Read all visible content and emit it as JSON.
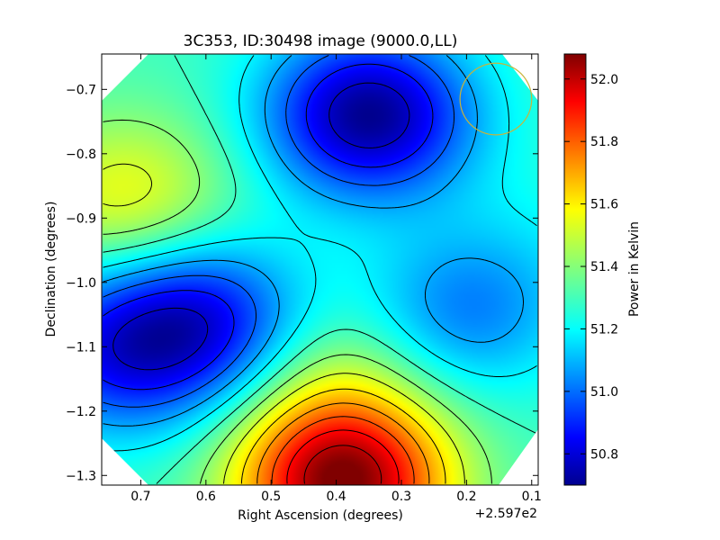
{
  "chart_data": {
    "type": "heatmap",
    "title": "3C353, ID:30498 image (9000.0,LL)",
    "xlabel": "Right Ascension (degrees)",
    "ylabel": "Declination (degrees)",
    "x_offset_label": "+2.597e2",
    "x_ticks": [
      "0.7",
      "0.6",
      "0.5",
      "0.4",
      "0.3",
      "0.2",
      "0.1"
    ],
    "y_ticks": [
      "−0.7",
      "−0.8",
      "−0.9",
      "−1.0",
      "−1.1",
      "−1.2",
      "−1.3"
    ],
    "xlim": [
      0.76,
      0.09
    ],
    "ylim": [
      -1.315,
      -0.645
    ],
    "colorbar": {
      "label": "Power in Kelvin",
      "ticks": [
        "50.8",
        "51.0",
        "51.2",
        "51.4",
        "51.6",
        "51.8",
        "52.0"
      ],
      "range": [
        50.7,
        52.08
      ],
      "colormap": "jet"
    },
    "features": [
      {
        "name": "minimum",
        "x": 0.35,
        "y": -0.74,
        "value": 50.72
      },
      {
        "name": "maximum",
        "x": 0.39,
        "y": -1.31,
        "value": 52.08
      },
      {
        "name": "high plateau",
        "x": 0.72,
        "y": -0.87,
        "value": 51.55
      },
      {
        "name": "low lobe",
        "x": 0.6,
        "y": -1.06,
        "value": 50.9
      },
      {
        "name": "low lobe",
        "x": 0.74,
        "y": -1.11,
        "value": 50.95
      },
      {
        "name": "low lobe",
        "x": 0.21,
        "y": -1.05,
        "value": 51.05
      },
      {
        "name": "ridge",
        "x": 0.4,
        "y": -1.14,
        "value": 51.45
      },
      {
        "name": "ridge",
        "x": 0.1,
        "y": -0.95,
        "value": 51.25
      }
    ],
    "beam_circle": {
      "x": 0.155,
      "y": -0.715,
      "radius_deg": 0.055,
      "color": "#c8b43a"
    },
    "grid": false,
    "contours": true,
    "contour_color": "#000000"
  }
}
